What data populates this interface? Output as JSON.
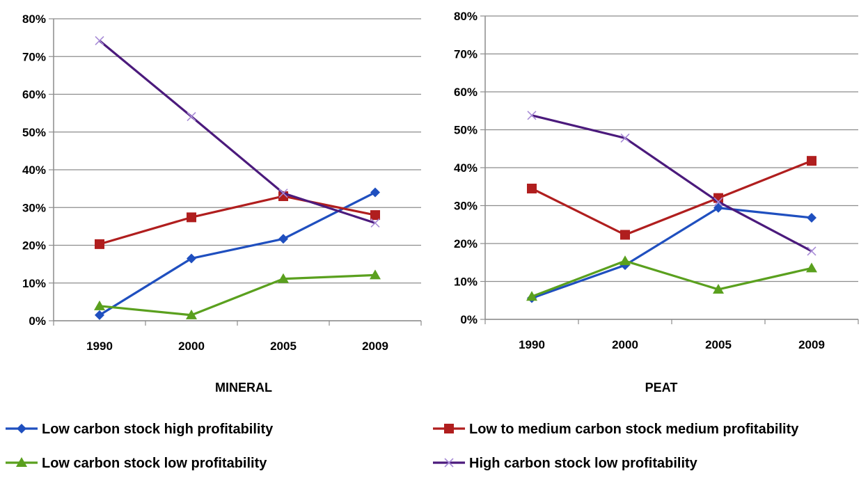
{
  "chart_data": [
    {
      "type": "line",
      "title": "MINERAL",
      "categories": [
        "1990",
        "2000",
        "2005",
        "2009"
      ],
      "ylim": [
        0,
        0.8
      ],
      "yticks": [
        "0%",
        "10%",
        "20%",
        "30%",
        "40%",
        "50%",
        "60%",
        "70%",
        "80%"
      ],
      "grid": "horizontal",
      "series": [
        {
          "name": "Low carbon stock high profitability",
          "values": [
            0.015,
            0.165,
            0.217,
            0.34
          ]
        },
        {
          "name": "Low to medium carbon stock medium profitability",
          "values": [
            0.203,
            0.274,
            0.33,
            0.28
          ]
        },
        {
          "name": "Low carbon stock low profitability",
          "values": [
            0.039,
            0.015,
            0.111,
            0.121
          ]
        },
        {
          "name": "High carbon stock low profitability",
          "values": [
            0.742,
            0.541,
            0.338,
            0.259
          ]
        }
      ]
    },
    {
      "type": "line",
      "title": "PEAT",
      "categories": [
        "1990",
        "2000",
        "2005",
        "2009"
      ],
      "ylim": [
        0,
        0.8
      ],
      "yticks": [
        "0%",
        "10%",
        "20%",
        "30%",
        "40%",
        "50%",
        "60%",
        "70%",
        "80%"
      ],
      "grid": "horizontal",
      "series": [
        {
          "name": "Low carbon stock high profitability",
          "values": [
            0.056,
            0.143,
            0.294,
            0.268
          ]
        },
        {
          "name": "Low to medium carbon stock medium profitability",
          "values": [
            0.345,
            0.223,
            0.32,
            0.418
          ]
        },
        {
          "name": "Low carbon stock low profitability",
          "values": [
            0.06,
            0.154,
            0.079,
            0.135
          ]
        },
        {
          "name": "High carbon stock low profitability",
          "values": [
            0.538,
            0.478,
            0.31,
            0.18
          ]
        }
      ]
    }
  ],
  "legend": {
    "placement": "bottom",
    "items": [
      {
        "label": "Low carbon stock high profitability",
        "color": "#1f4fbf",
        "marker": "diamond"
      },
      {
        "label": "Low to medium carbon stock medium profitability",
        "color": "#b01e1e",
        "marker": "square"
      },
      {
        "label": "Low carbon stock low profitability",
        "color": "#5aa01e",
        "marker": "triangle"
      },
      {
        "label": "High carbon stock low profitability",
        "color": "#4b1a7c",
        "marker": "x"
      }
    ]
  }
}
